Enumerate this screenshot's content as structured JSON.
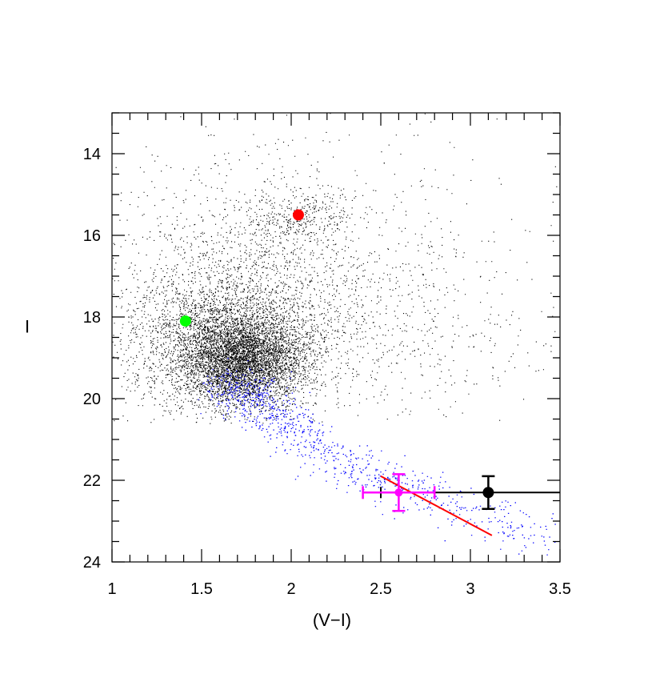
{
  "chart_data": {
    "type": "scatter",
    "title": "",
    "xlabel": "(V−I)",
    "ylabel": "I",
    "xlim": [
      1,
      3.5
    ],
    "ylim": [
      24,
      13
    ],
    "y_inverted": true,
    "grid": false,
    "xticks": [
      "1",
      "1.5",
      "2",
      "2.5",
      "3",
      "3.5"
    ],
    "xtick_values": [
      1,
      1.5,
      2,
      2.5,
      3,
      3.5
    ],
    "yticks": [
      "14",
      "16",
      "18",
      "20",
      "22",
      "24"
    ],
    "ytick_values": [
      14,
      16,
      18,
      20,
      22,
      24
    ],
    "colors": {
      "field_stars": "#000000",
      "blue_stars": "#0000ff",
      "red_marker": "#ff0000",
      "green_marker": "#00ff00",
      "magenta_marker": "#ff00ff",
      "black_marker": "#000000",
      "red_line": "#ff0000"
    },
    "field_stars": {
      "description_color": "black",
      "clumps": [
        {
          "cx": 1.72,
          "cy": 19.0,
          "sx": 0.17,
          "sy": 0.55,
          "n": 4200
        },
        {
          "cx": 1.6,
          "cy": 18.6,
          "sx": 0.28,
          "sy": 0.9,
          "n": 2200
        },
        {
          "cx": 1.75,
          "cy": 17.6,
          "sx": 0.35,
          "sy": 1.5,
          "n": 1400
        },
        {
          "cx": 2.05,
          "cy": 15.5,
          "sx": 0.15,
          "sy": 0.35,
          "n": 300
        },
        {
          "cx": 2.1,
          "cy": 17.0,
          "sx": 0.6,
          "sy": 1.9,
          "n": 900
        },
        {
          "cx": 2.6,
          "cy": 18.6,
          "sx": 0.45,
          "sy": 0.9,
          "n": 300
        }
      ]
    },
    "blue_stars": {
      "path": [
        [
          1.68,
          19.7
        ],
        [
          1.85,
          20.2
        ],
        [
          2.05,
          20.9
        ],
        [
          2.3,
          21.6
        ],
        [
          2.6,
          22.2
        ],
        [
          3.0,
          22.7
        ],
        [
          3.4,
          23.4
        ]
      ],
      "scatter": 0.1,
      "n": 900
    },
    "markers": [
      {
        "name": "red",
        "x": 2.04,
        "y": 15.5,
        "color": "#ff0000"
      },
      {
        "name": "green",
        "x": 1.41,
        "y": 18.1,
        "color": "#00ff00"
      }
    ],
    "black_point": {
      "x": 3.1,
      "y": 22.3,
      "xerr_low": 0.6,
      "xerr_high": 0.4,
      "yerr": 0.4,
      "color": "#000000"
    },
    "magenta_point": {
      "x": 2.6,
      "y": 22.3,
      "xerr": 0.2,
      "yerr": 0.45,
      "color": "#ff00ff"
    },
    "red_line": {
      "x1": 2.5,
      "y1": 21.9,
      "x2": 3.12,
      "y2": 23.35,
      "color": "#ff0000"
    }
  }
}
